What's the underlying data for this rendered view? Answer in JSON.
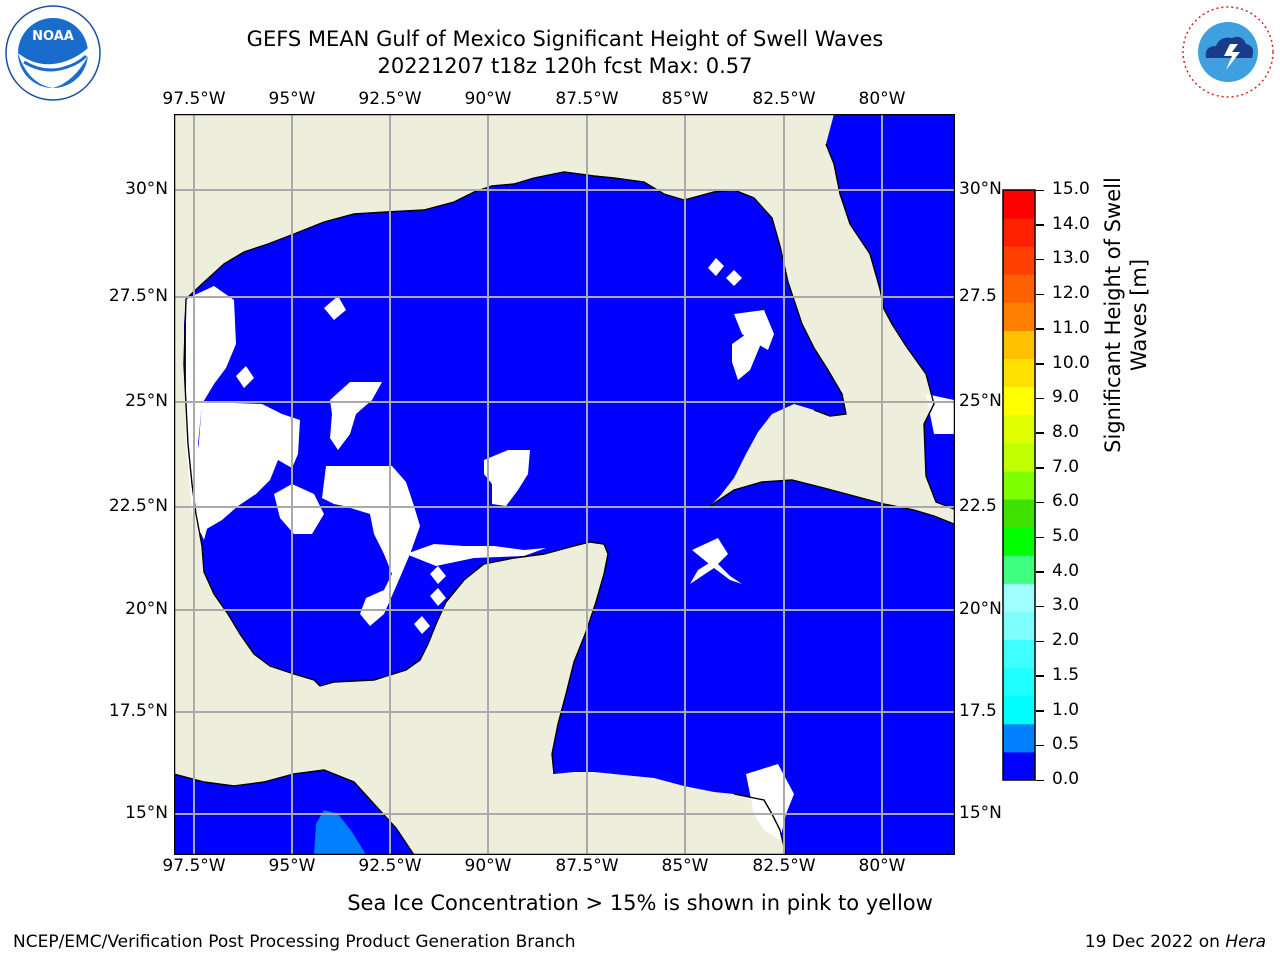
{
  "title": {
    "line1": "GEFS MEAN Gulf of Mexico Significant Height of Swell Waves",
    "line2": "20221207 t18z 120h fcst   Max: 0.57"
  },
  "logos": {
    "left": {
      "name": "noaa-logo",
      "text": "NOAA",
      "ring_text": "NATIONAL OCEANIC AND ATMOSPHERIC ADMINISTRATION · U.S. DEPARTMENT OF COMMERCE"
    },
    "right": {
      "name": "nws-logo",
      "ring_text": "NATIONAL WEATHER SERVICE"
    }
  },
  "map": {
    "lon_ticks": [
      "97.5°W",
      "95°W",
      "92.5°W",
      "90°W",
      "87.5°W",
      "85°W",
      "82.5°W",
      "80°W"
    ],
    "lat_ticks": [
      "30°N",
      "27.5°N",
      "25°N",
      "22.5°N",
      "20°N",
      "17.5°N",
      "15°N"
    ],
    "lat_ticks_right": [
      "30°N",
      "27.5",
      "25°N",
      "22.5",
      "20°N",
      "17.5",
      "15°N"
    ],
    "colors": {
      "land": "#eeeedd",
      "sea_low": "#0000ff",
      "sea_half": "#0080ff",
      "nodata": "#ffffff",
      "grid": "#aaaaaa",
      "coast": "#000000"
    }
  },
  "colorbar": {
    "label": "Significant Height of Swell Waves [m]",
    "ticks": [
      "15.0",
      "14.0",
      "13.0",
      "12.0",
      "11.0",
      "10.0",
      "9.0",
      "8.0",
      "7.0",
      "6.0",
      "5.0",
      "4.0",
      "3.0",
      "2.0",
      "1.5",
      "1.0",
      "0.5",
      "0.0"
    ],
    "colors_bottom_to_top": [
      "#0000ff",
      "#0080ff",
      "#00ffff",
      "#20ffff",
      "#40ffff",
      "#80ffff",
      "#a0ffff",
      "#40ff80",
      "#00ff00",
      "#40e000",
      "#80ff00",
      "#c0ff00",
      "#e0ff00",
      "#ffff00",
      "#ffe000",
      "#ffc000",
      "#ff8000",
      "#ff6000",
      "#ff4000",
      "#ff2000",
      "#ff0000"
    ]
  },
  "caption": "Sea Ice Concentration > 15% is shown in pink to yellow",
  "footer": {
    "left": "NCEP/EMC/Verification Post Processing Product Generation Branch",
    "right_date": "19 Dec 2022 on ",
    "right_host": "Hera"
  }
}
